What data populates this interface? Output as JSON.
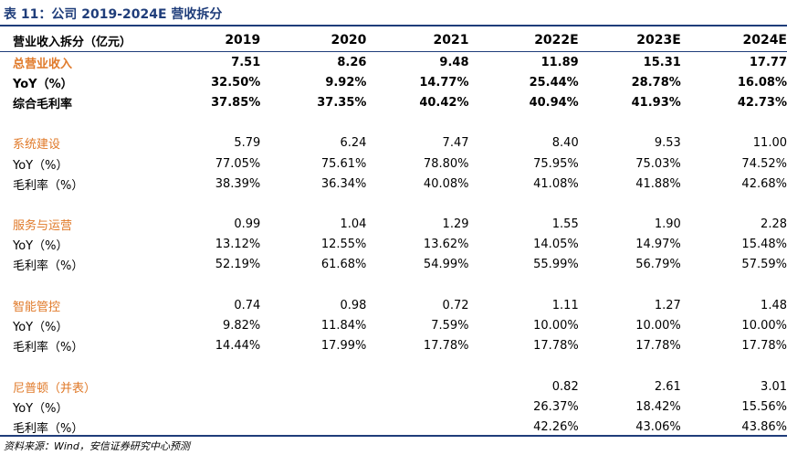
{
  "title": "表 11：公司 2019-2024E 营收拆分",
  "header": {
    "label": "营业收入拆分（亿元）",
    "years": [
      "2019",
      "2020",
      "2021",
      "2022E",
      "2023E",
      "2024E"
    ]
  },
  "rows": [
    {
      "label": "总营业收入",
      "values": [
        "7.51",
        "8.26",
        "9.48",
        "11.89",
        "15.31",
        "17.77"
      ]
    },
    {
      "label": "YoY（%）",
      "values": [
        "32.50%",
        "9.92%",
        "14.77%",
        "25.44%",
        "28.78%",
        "16.08%"
      ]
    },
    {
      "label": "综合毛利率",
      "values": [
        "37.85%",
        "37.35%",
        "40.42%",
        "40.94%",
        "41.93%",
        "42.73%"
      ]
    },
    {
      "label": "系统建设",
      "values": [
        "5.79",
        "6.24",
        "7.47",
        "8.40",
        "9.53",
        "11.00"
      ]
    },
    {
      "label": "YoY（%）",
      "values": [
        "77.05%",
        "75.61%",
        "78.80%",
        "75.95%",
        "75.03%",
        "74.52%"
      ]
    },
    {
      "label": "毛利率（%）",
      "values": [
        "38.39%",
        "36.34%",
        "40.08%",
        "41.08%",
        "41.88%",
        "42.68%"
      ]
    },
    {
      "label": "服务与运营",
      "values": [
        "0.99",
        "1.04",
        "1.29",
        "1.55",
        "1.90",
        "2.28"
      ]
    },
    {
      "label": "YoY（%）",
      "values": [
        "13.12%",
        "12.55%",
        "13.62%",
        "14.05%",
        "14.97%",
        "15.48%"
      ]
    },
    {
      "label": "毛利率（%）",
      "values": [
        "52.19%",
        "61.68%",
        "54.99%",
        "55.99%",
        "56.79%",
        "57.59%"
      ]
    },
    {
      "label": "智能管控",
      "values": [
        "0.74",
        "0.98",
        "0.72",
        "1.11",
        "1.27",
        "1.48"
      ]
    },
    {
      "label": "YoY（%）",
      "values": [
        "9.82%",
        "11.84%",
        "7.59%",
        "10.00%",
        "10.00%",
        "10.00%"
      ]
    },
    {
      "label": "毛利率（%）",
      "values": [
        "14.44%",
        "17.99%",
        "17.78%",
        "17.78%",
        "17.78%",
        "17.78%"
      ]
    },
    {
      "label": "尼普顿（并表）",
      "values": [
        "",
        "",
        "",
        "0.82",
        "2.61",
        "3.01"
      ]
    },
    {
      "label": "YoY（%）",
      "values": [
        "",
        "",
        "",
        "26.37%",
        "18.42%",
        "15.56%"
      ]
    },
    {
      "label": "毛利率（%）",
      "values": [
        "",
        "",
        "",
        "42.26%",
        "43.06%",
        "43.86%"
      ]
    }
  ],
  "source": "资料来源：Wind，安信证券研究中心预测",
  "colors": {
    "accent": "#1f3d7a",
    "section_label": "#e07a2a"
  }
}
